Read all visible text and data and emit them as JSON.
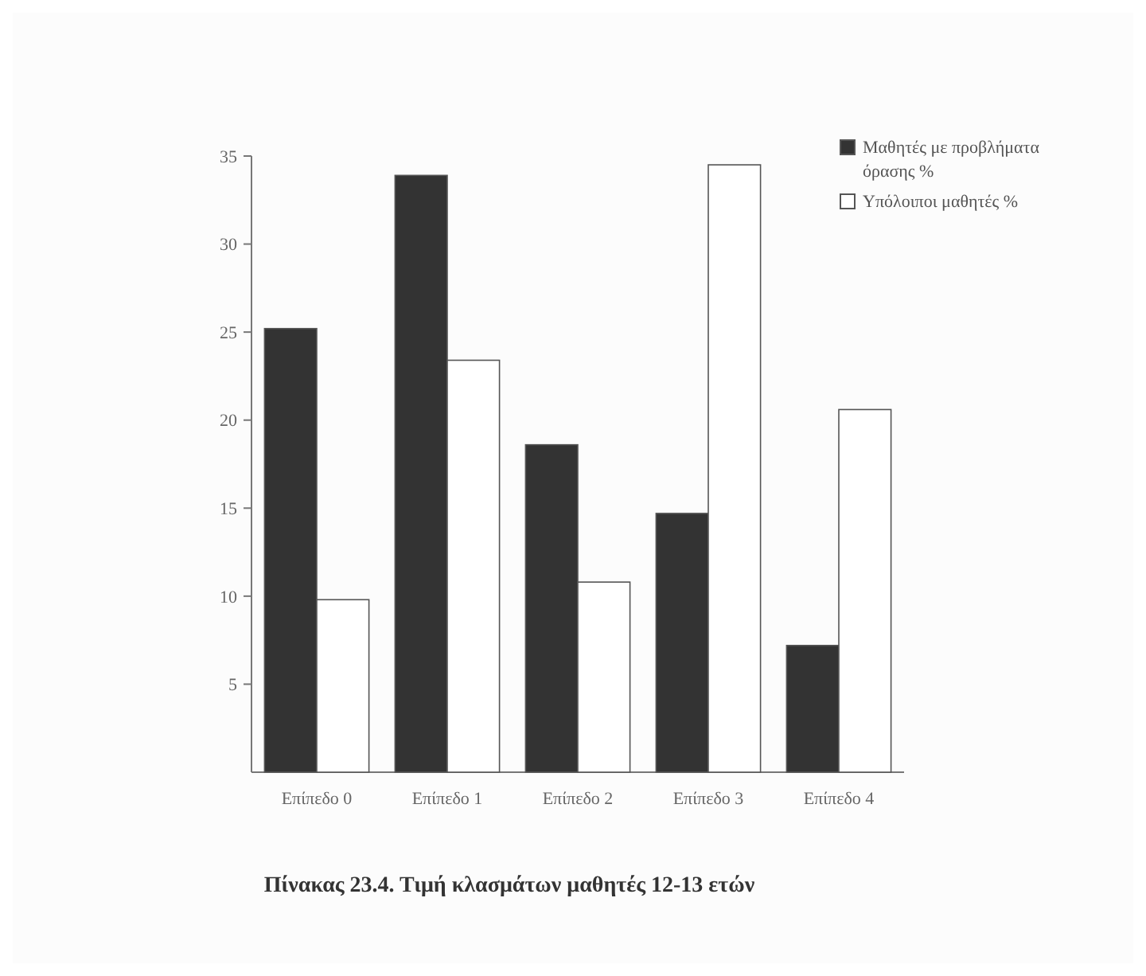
{
  "chart_data": {
    "type": "bar",
    "title": "Πίνακας 23.4. Τιμή κλασμάτων μαθητές 12-13 ετών",
    "categories": [
      "Επίπεδο 0",
      "Επίπεδο 1",
      "Επίπεδο 2",
      "Επίπεδο 3",
      "Επίπεδο 4"
    ],
    "series": [
      {
        "name": "Μαθητές με προβλήματα όρασης %",
        "color": "#333333",
        "values": [
          25.2,
          33.9,
          18.6,
          14.7,
          7.2
        ]
      },
      {
        "name": "Υπόλοιποι μαθητές %",
        "color": "#ffffff",
        "values": [
          9.8,
          23.4,
          10.8,
          34.5,
          20.6
        ]
      }
    ],
    "ylim": [
      0,
      35
    ],
    "yticks": [
      5,
      10,
      15,
      20,
      25,
      30,
      35
    ],
    "grid": false,
    "legend": "top right"
  }
}
